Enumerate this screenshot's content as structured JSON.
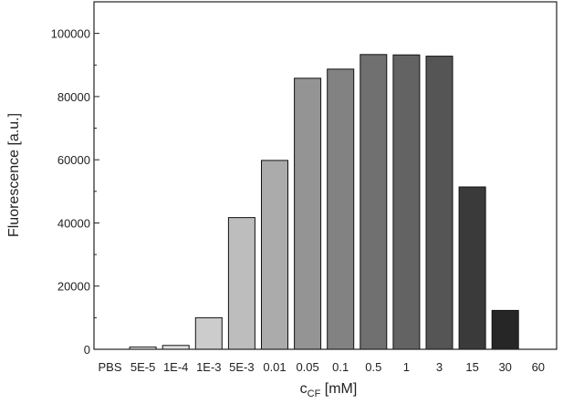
{
  "chart_data": {
    "type": "bar",
    "categories": [
      "PBS",
      "5E-5",
      "1E-4",
      "1E-3",
      "5E-3",
      "0.01",
      "0.05",
      "0.1",
      "0.5",
      "1",
      "3",
      "15",
      "30",
      "60"
    ],
    "values": [
      0,
      700,
      1200,
      10000,
      41700,
      59800,
      85800,
      88700,
      93300,
      93200,
      92800,
      51400,
      12300,
      0
    ],
    "bar_colors": [
      "#f4f4f4",
      "#eeeeee",
      "#e0e0e0",
      "#cccccc",
      "#bdbdbd",
      "#ababab",
      "#949494",
      "#828282",
      "#707070",
      "#636363",
      "#555555",
      "#3a3a3a",
      "#262626",
      "#111111"
    ],
    "xlabel_main": "c",
    "xlabel_sub": "CF",
    "xlabel_unit": " [mM]",
    "ylabel": "Fluorescence [a.u.]",
    "ylim": [
      0,
      110000
    ],
    "yticks": [
      0,
      20000,
      40000,
      60000,
      80000,
      100000
    ],
    "yticks_labels": [
      "0",
      "20000",
      "40000",
      "60000",
      "80000",
      "100000"
    ],
    "grid": false
  }
}
